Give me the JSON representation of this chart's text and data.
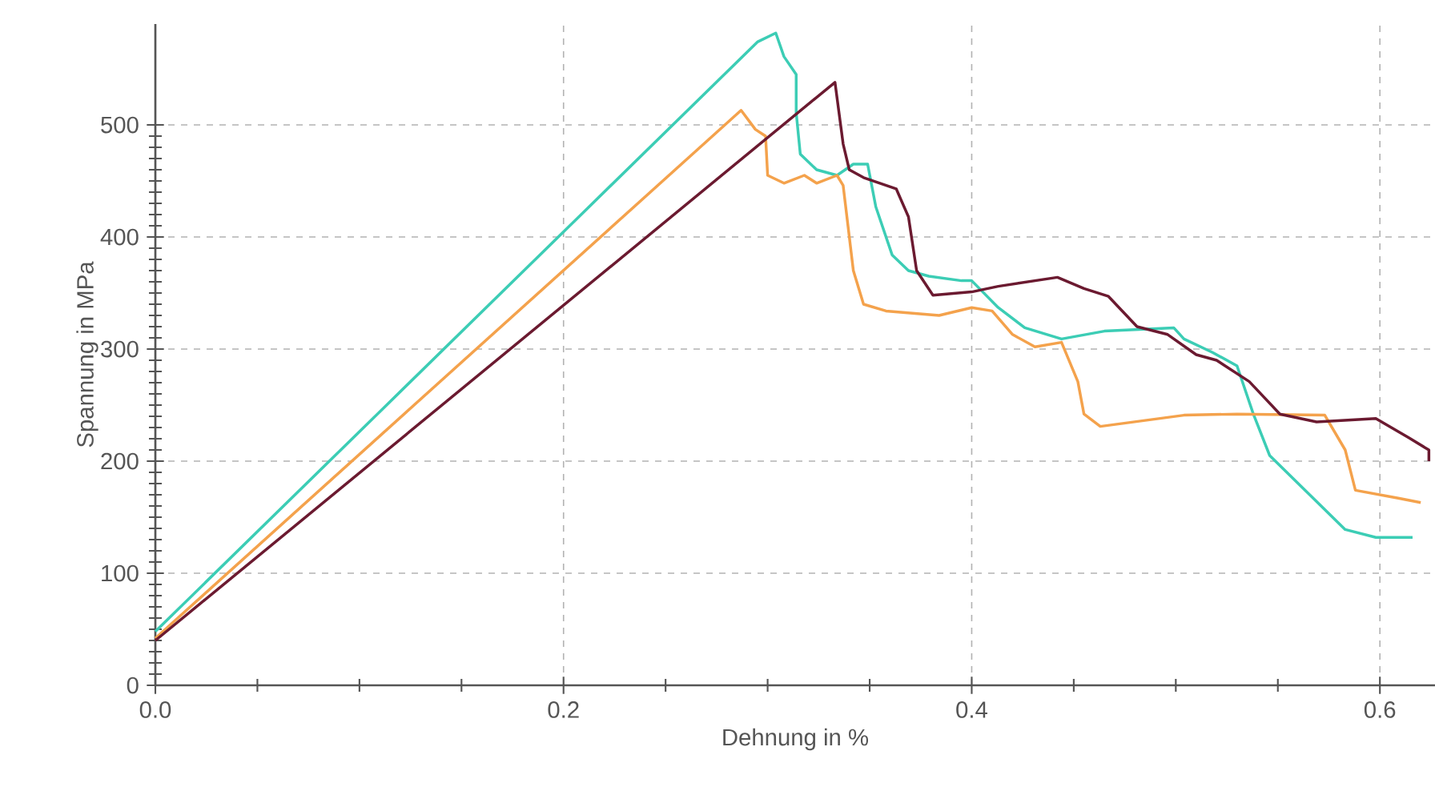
{
  "chart_data": {
    "type": "line",
    "xlabel": "Dehnung in %",
    "ylabel": "Spannung in MPa",
    "xlim": [
      0,
      0.627
    ],
    "ylim": [
      0,
      590
    ],
    "xticks": [
      {
        "value": 0,
        "label": "0.0"
      },
      0.2,
      0.4,
      0.6
    ],
    "yticks": [
      0,
      100,
      200,
      300,
      400,
      500
    ],
    "grid": true,
    "line_style": "solid",
    "series": [
      {
        "color": "#3ccdb5",
        "x": [
          0,
          0.295,
          0.304,
          0.308,
          0.314,
          0.314,
          0.316,
          0.324,
          0.334,
          0.342,
          0.349,
          0.353,
          0.361,
          0.369,
          0.379,
          0.395,
          0.4,
          0.413,
          0.426,
          0.444,
          0.465,
          0.499,
          0.504,
          0.518,
          0.53,
          0.538,
          0.546,
          0.565,
          0.583,
          0.598,
          0.616
        ],
        "values": [
          48,
          574,
          582,
          561,
          545,
          511,
          474,
          460,
          455,
          465,
          465,
          427,
          384,
          370,
          365,
          361,
          361,
          337,
          319,
          309,
          316,
          319,
          309,
          297,
          285,
          242,
          205,
          171,
          139,
          132,
          132
        ]
      },
      {
        "color": "#f4a24c",
        "x": [
          0,
          0.287,
          0.294,
          0.299,
          0.3,
          0.308,
          0.318,
          0.324,
          0.334,
          0.337,
          0.342,
          0.347,
          0.358,
          0.384,
          0.4,
          0.41,
          0.42,
          0.431,
          0.444,
          0.452,
          0.455,
          0.463,
          0.504,
          0.53,
          0.573,
          0.583,
          0.588,
          0.609,
          0.62
        ],
        "values": [
          42,
          513,
          496,
          490,
          455,
          448,
          455,
          448,
          455,
          446,
          370,
          340,
          334,
          330,
          337,
          334,
          313,
          302,
          306,
          271,
          242,
          231,
          241,
          242,
          241,
          210,
          174,
          167,
          163
        ]
      },
      {
        "color": "#6b1a30",
        "x": [
          0,
          0.333,
          0.337,
          0.34,
          0.347,
          0.363,
          0.369,
          0.373,
          0.381,
          0.4,
          0.413,
          0.442,
          0.455,
          0.467,
          0.481,
          0.496,
          0.51,
          0.52,
          0.536,
          0.551,
          0.569,
          0.598,
          0.614,
          0.624,
          0.624
        ],
        "values": [
          40,
          538,
          483,
          460,
          453,
          443,
          418,
          370,
          348,
          351,
          356,
          364,
          354,
          347,
          320,
          313,
          295,
          290,
          271,
          242,
          235,
          238,
          221,
          210,
          200
        ]
      }
    ]
  }
}
